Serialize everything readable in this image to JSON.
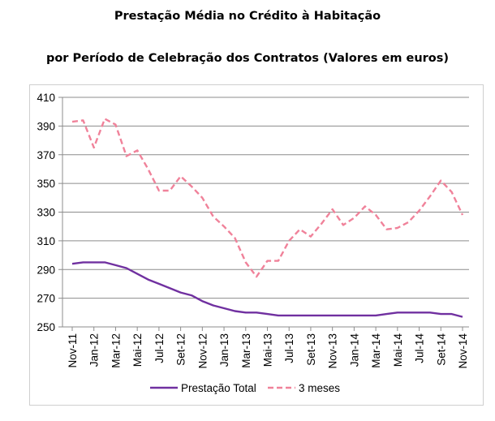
{
  "title_line1": "Prestação Média no Crédito à Habitação",
  "title_line2": "por Período de Celebração dos Contratos (Valores em euros)",
  "chart_data": {
    "type": "line",
    "title": "Prestação Média no Crédito à Habitação por Período de Celebração dos Contratos (Valores em euros)",
    "ylim": [
      250,
      410
    ],
    "yticks": [
      250,
      270,
      290,
      310,
      330,
      350,
      370,
      390,
      410
    ],
    "grid": true,
    "legend_position": "bottom",
    "x": [
      "Nov-11",
      "Dez-11",
      "Jan-12",
      "Fev-12",
      "Mar-12",
      "Abr-12",
      "Mai-12",
      "Jun-12",
      "Jul-12",
      "Ago-12",
      "Set-12",
      "Out-12",
      "Nov-12",
      "Dez-12",
      "Jan-13",
      "Fev-13",
      "Mar-13",
      "Abr-13",
      "Mai-13",
      "Jun-13",
      "Jul-13",
      "Ago-13",
      "Set-13",
      "Out-13",
      "Nov-13",
      "Dez-13",
      "Jan-14",
      "Fev-14",
      "Mar-14",
      "Abr-14",
      "Mai-14",
      "Jun-14",
      "Jul-14",
      "Ago-14",
      "Set-14",
      "Out-14",
      "Nov-14"
    ],
    "xtick_labels": [
      "Nov-11",
      "Jan-12",
      "Mar-12",
      "Mai-12",
      "Jul-12",
      "Set-12",
      "Nov-12",
      "Jan-13",
      "Mar-13",
      "Mai-13",
      "Jul-13",
      "Set-13",
      "Nov-13",
      "Jan-14",
      "Mar-14",
      "Mai-14",
      "Jul-14",
      "Set-14",
      "Nov-14"
    ],
    "series": [
      {
        "name": "Prestação Total",
        "color": "#7030a0",
        "style": "solid",
        "values": [
          294,
          295,
          295,
          295,
          293,
          291,
          287,
          283,
          280,
          277,
          274,
          272,
          268,
          265,
          263,
          261,
          260,
          260,
          259,
          258,
          258,
          258,
          258,
          258,
          258,
          258,
          258,
          258,
          258,
          259,
          260,
          260,
          260,
          260,
          259,
          259,
          257
        ]
      },
      {
        "name": "3 meses",
        "color": "#f0829a",
        "style": "dashed",
        "values": [
          393,
          394,
          375,
          395,
          391,
          369,
          373,
          360,
          345,
          345,
          355,
          348,
          340,
          327,
          320,
          312,
          295,
          285,
          296,
          296,
          310,
          318,
          313,
          322,
          332,
          321,
          326,
          334,
          328,
          318,
          319,
          323,
          331,
          341,
          352,
          344,
          328
        ]
      }
    ]
  }
}
